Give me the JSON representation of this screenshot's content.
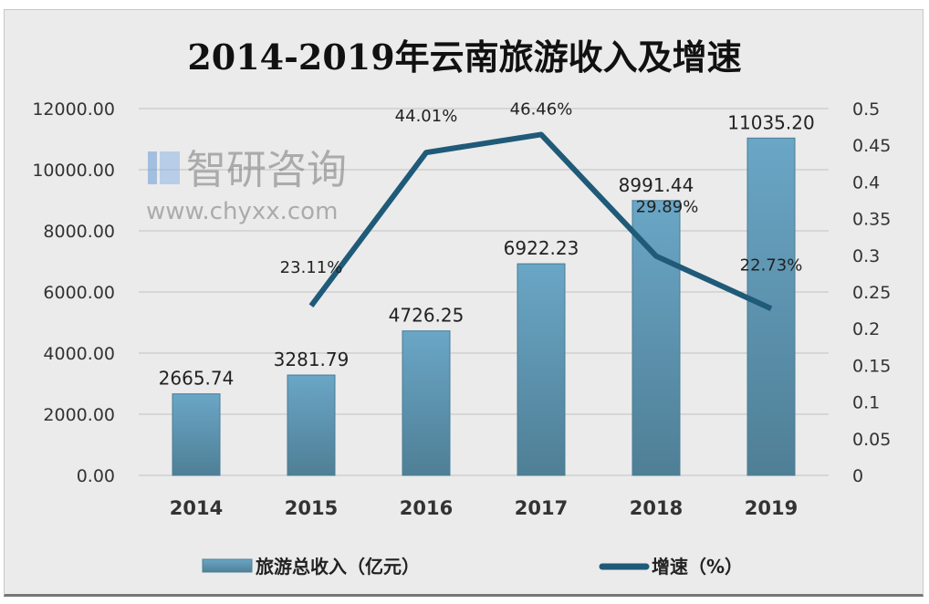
{
  "chart_data": {
    "type": "bar+line",
    "title": "2014-2019年云南旅游收入及增速",
    "categories": [
      "2014",
      "2015",
      "2016",
      "2017",
      "2018",
      "2019"
    ],
    "series": [
      {
        "name": "旅游总收入（亿元）",
        "type": "bar",
        "axis": "left",
        "values": [
          2665.74,
          3281.79,
          4726.25,
          6922.23,
          8991.44,
          11035.2
        ],
        "labels": [
          "2665.74",
          "3281.79",
          "4726.25",
          "6922.23",
          "8991.44",
          "11035.20"
        ],
        "color": "#5b96b5"
      },
      {
        "name": "增速（%）",
        "type": "line",
        "axis": "right",
        "values": [
          null,
          0.2311,
          0.4401,
          0.4646,
          0.2989,
          0.2273
        ],
        "labels": [
          "",
          "23.11%",
          "44.01%",
          "46.46%",
          "29.89%",
          "22.73%"
        ],
        "color": "#1f5a78"
      }
    ],
    "ylim_left": [
      0,
      12000
    ],
    "yticks_left": [
      "0.00",
      "2000.00",
      "4000.00",
      "6000.00",
      "8000.00",
      "10000.00",
      "12000.00"
    ],
    "ylim_right": [
      0,
      0.5
    ],
    "yticks_right": [
      "0",
      "0.05",
      "0.1",
      "0.15",
      "0.2",
      "0.25",
      "0.3",
      "0.35",
      "0.4",
      "0.45",
      "0.5"
    ],
    "grid": true,
    "legend_position": "bottom"
  },
  "watermark": {
    "brand": "智研咨询",
    "url": "www.chyxx.com"
  }
}
